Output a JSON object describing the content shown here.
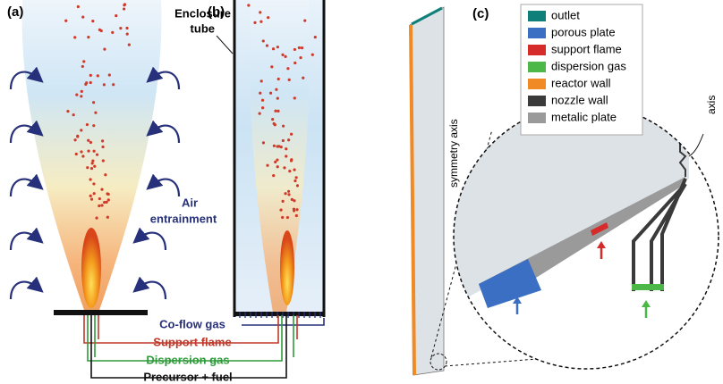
{
  "panels": {
    "a": "(a)",
    "b": "(b)",
    "c": "(c)"
  },
  "labels": {
    "air_entrainment": [
      "Air",
      "entrainment"
    ],
    "enclosure_tube": [
      "Enclosure",
      "tube"
    ],
    "co_flow_gas": "Co-flow gas",
    "support_flame": "Support flame",
    "dispersion_gas": "Dispersion gas",
    "precursor_fuel": "Precursor + fuel",
    "symmetry_axis": "symmetry axis",
    "axis": "axis"
  },
  "legend": [
    {
      "label": "outlet",
      "color": "#0f7f7a"
    },
    {
      "label": "porous plate",
      "color": "#3a6fc4"
    },
    {
      "label": "support flame",
      "color": "#d62b2b"
    },
    {
      "label": "dispersion gas",
      "color": "#4cb848"
    },
    {
      "label": "reactor wall",
      "color": "#f08a24"
    },
    {
      "label": "nozzle wall",
      "color": "#3a3a3a"
    },
    {
      "label": "metalic plate",
      "color": "#9a9a9a"
    }
  ]
}
